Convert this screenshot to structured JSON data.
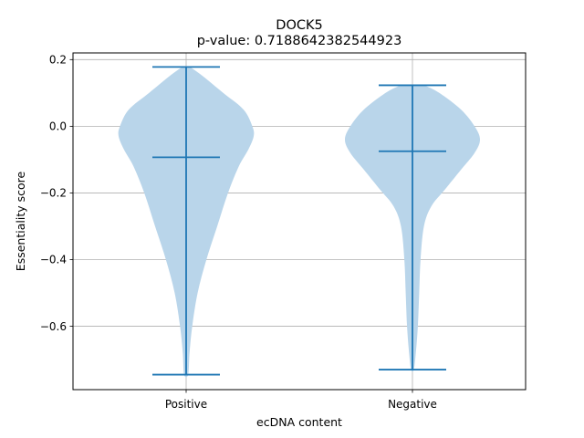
{
  "chart_data": {
    "type": "violin",
    "title": "DOCK5",
    "subtitle": "p-value: 0.7188642382544923",
    "xlabel": "ecDNA content",
    "ylabel": "Essentiality score",
    "categories": [
      "Positive",
      "Negative"
    ],
    "ylim": [
      -0.79,
      0.22
    ],
    "yticks": [
      0.2,
      0.0,
      -0.2,
      -0.4,
      -0.6
    ],
    "ytick_labels": [
      "0.2",
      "0.0",
      "−0.2",
      "−0.4",
      "−0.6"
    ],
    "grid": true,
    "colors": {
      "body": "#b9d5ea",
      "line": "#1f77b4",
      "grid": "#b0b0b0"
    },
    "violins": [
      {
        "category": "Positive",
        "max": 0.178,
        "median": -0.093,
        "min": -0.745,
        "profile": [
          [
            0.178,
            0.06
          ],
          [
            0.15,
            0.25
          ],
          [
            0.1,
            0.55
          ],
          [
            0.05,
            0.85
          ],
          [
            0.0,
            0.98
          ],
          [
            -0.03,
            1.0
          ],
          [
            -0.07,
            0.92
          ],
          [
            -0.12,
            0.78
          ],
          [
            -0.2,
            0.62
          ],
          [
            -0.3,
            0.46
          ],
          [
            -0.4,
            0.3
          ],
          [
            -0.5,
            0.17
          ],
          [
            -0.6,
            0.09
          ],
          [
            -0.68,
            0.05
          ],
          [
            -0.745,
            0.03
          ]
        ]
      },
      {
        "category": "Negative",
        "max": 0.123,
        "median": -0.075,
        "min": -0.73,
        "profile": [
          [
            0.123,
            0.18
          ],
          [
            0.1,
            0.4
          ],
          [
            0.05,
            0.72
          ],
          [
            0.0,
            0.92
          ],
          [
            -0.04,
            1.0
          ],
          [
            -0.08,
            0.92
          ],
          [
            -0.13,
            0.72
          ],
          [
            -0.19,
            0.48
          ],
          [
            -0.24,
            0.28
          ],
          [
            -0.3,
            0.17
          ],
          [
            -0.4,
            0.12
          ],
          [
            -0.5,
            0.1
          ],
          [
            -0.6,
            0.08
          ],
          [
            -0.68,
            0.05
          ],
          [
            -0.73,
            0.02
          ]
        ]
      }
    ]
  }
}
